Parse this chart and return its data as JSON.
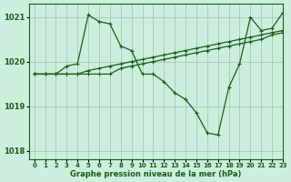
{
  "bg_color": "#cceedd",
  "grid_color": "#aaccbb",
  "line_color": "#1a5c1a",
  "xlabel": "Graphe pression niveau de la mer (hPa)",
  "xlim": [
    -0.5,
    23
  ],
  "ylim": [
    1017.8,
    1021.3
  ],
  "yticks": [
    1018,
    1019,
    1020,
    1021
  ],
  "xticks": [
    0,
    1,
    2,
    3,
    4,
    5,
    6,
    7,
    8,
    9,
    10,
    11,
    12,
    13,
    14,
    15,
    16,
    17,
    18,
    19,
    20,
    21,
    22,
    23
  ],
  "series1_x": [
    0,
    1,
    2,
    3,
    4,
    5,
    6,
    7,
    8,
    9,
    10,
    11,
    12,
    13,
    14,
    15,
    16,
    17,
    18,
    19,
    20,
    21,
    22,
    23
  ],
  "series1_y": [
    1019.72,
    1019.72,
    1019.72,
    1019.72,
    1019.72,
    1019.72,
    1019.72,
    1019.72,
    1019.85,
    1019.9,
    1019.95,
    1020.0,
    1020.05,
    1020.1,
    1020.15,
    1020.2,
    1020.25,
    1020.3,
    1020.35,
    1020.4,
    1020.45,
    1020.5,
    1020.6,
    1020.65
  ],
  "series2_x": [
    0,
    1,
    2,
    3,
    4,
    5,
    6,
    7,
    8,
    9,
    10,
    11,
    12,
    13,
    14,
    15,
    16,
    17,
    18,
    19,
    20,
    21,
    22,
    23
  ],
  "series2_y": [
    1019.72,
    1019.72,
    1019.72,
    1019.72,
    1019.72,
    1019.8,
    1019.85,
    1019.9,
    1019.95,
    1020.0,
    1020.05,
    1020.1,
    1020.15,
    1020.2,
    1020.25,
    1020.3,
    1020.35,
    1020.4,
    1020.45,
    1020.5,
    1020.55,
    1020.6,
    1020.65,
    1020.7
  ],
  "series3_x": [
    0,
    1,
    2,
    3,
    4,
    5,
    6,
    7,
    8,
    9,
    10,
    11,
    12,
    13,
    14,
    15,
    16,
    17,
    18,
    19,
    20,
    21,
    22,
    23
  ],
  "series3_y": [
    1019.72,
    1019.72,
    1019.72,
    1019.9,
    1019.95,
    1021.05,
    1020.9,
    1020.85,
    1020.35,
    1020.25,
    1019.72,
    1019.72,
    1019.55,
    1019.3,
    1019.15,
    1018.85,
    1018.4,
    1018.35,
    1019.42,
    1019.95,
    1021.0,
    1020.7,
    1020.75,
    1021.1
  ]
}
